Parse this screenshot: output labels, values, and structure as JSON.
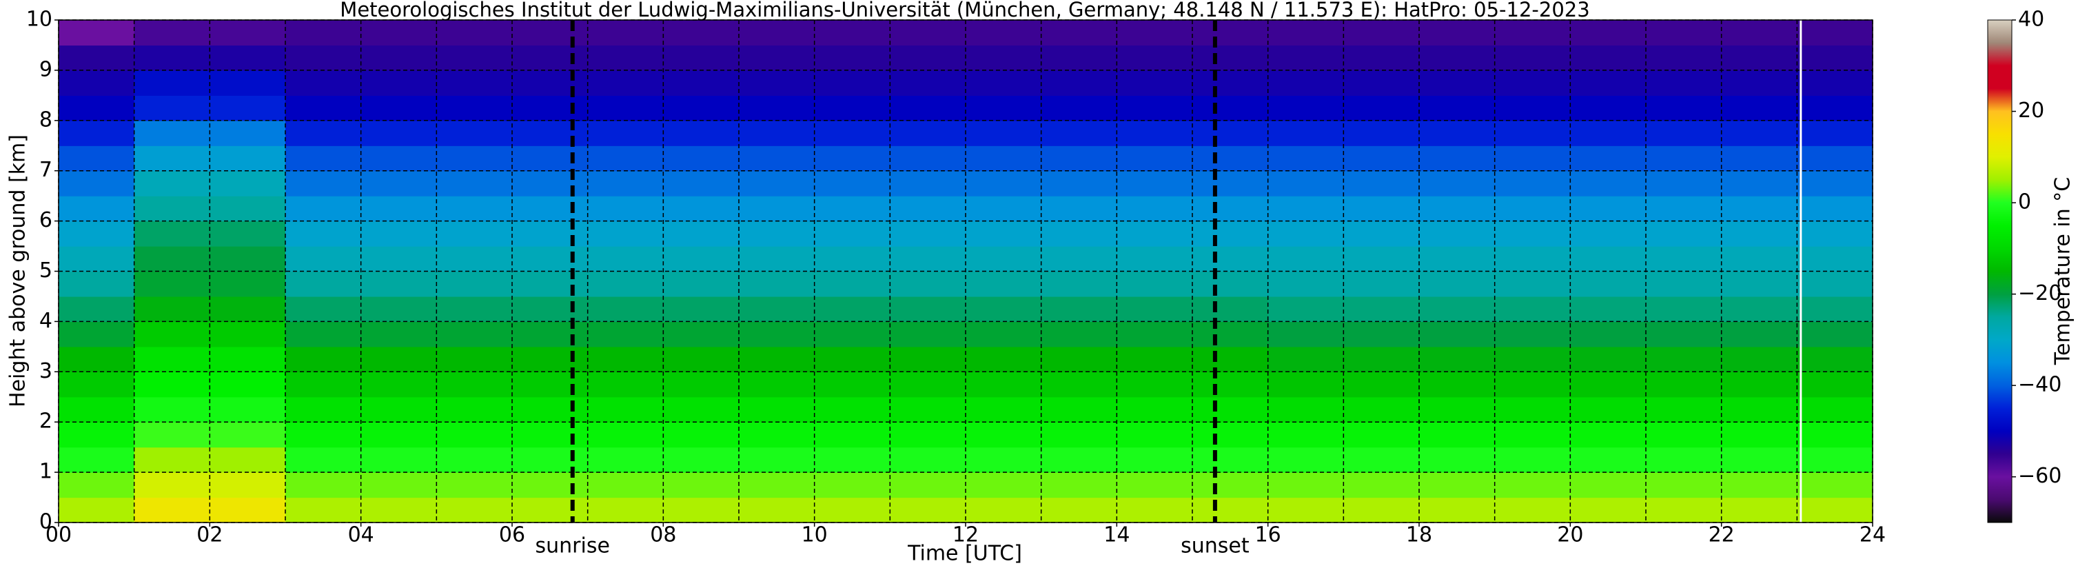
{
  "chart_data": {
    "type": "heatmap",
    "title": "Meteorologisches Institut der Ludwig-Maximilians-Universität (München, Germany; 48.148 N / 11.573 E):    HatPro: 05-12-2023",
    "xlabel": "Time [UTC]",
    "ylabel": "Height above ground [km]",
    "colorbar_label": "Temperature in °C",
    "xlim": [
      0,
      24
    ],
    "ylim": [
      0,
      10
    ],
    "zlim": [
      -70,
      40
    ],
    "xticks": [
      {
        "value": 0,
        "label": "00"
      },
      {
        "value": 2,
        "label": "02"
      },
      {
        "value": 4,
        "label": "04"
      },
      {
        "value": 6,
        "label": "06"
      },
      {
        "value": 8,
        "label": "08"
      },
      {
        "value": 10,
        "label": "10"
      },
      {
        "value": 12,
        "label": "12"
      },
      {
        "value": 14,
        "label": "14"
      },
      {
        "value": 16,
        "label": "16"
      },
      {
        "value": 18,
        "label": "18"
      },
      {
        "value": 20,
        "label": "20"
      },
      {
        "value": 22,
        "label": "22"
      },
      {
        "value": 24,
        "label": "24"
      }
    ],
    "x_minor_ticks": [
      1,
      3,
      5,
      7,
      9,
      11,
      13,
      15,
      17,
      19,
      21,
      23
    ],
    "yticks": [
      0,
      1,
      2,
      3,
      4,
      5,
      6,
      7,
      8,
      9,
      10
    ],
    "zticks": [
      {
        "value": 40,
        "label": "40"
      },
      {
        "value": 20,
        "label": "20"
      },
      {
        "value": 0,
        "label": "0"
      },
      {
        "value": -20,
        "label": "−20"
      },
      {
        "value": -40,
        "label": "−40"
      },
      {
        "value": -60,
        "label": "−60"
      }
    ],
    "grid": true,
    "colormap": [
      "#0a0a0a",
      "#4a0a70",
      "#6a10a0",
      "#300090",
      "#0000c0",
      "#0020d8",
      "#0060e0",
      "#0090e0",
      "#00a8c8",
      "#00a8a0",
      "#00a040",
      "#00b800",
      "#00d800",
      "#00f000",
      "#20ff20",
      "#a0f000",
      "#e0f000",
      "#f8e000",
      "#ffc020",
      "#d00020",
      "#d00020",
      "#a08878",
      "#d8d0c0"
    ],
    "x_edges": [
      0,
      1,
      2,
      3,
      4,
      5,
      6,
      7,
      8,
      9,
      10,
      11,
      12,
      13,
      14,
      15,
      16,
      17,
      18,
      19,
      20,
      21,
      22,
      23,
      24
    ],
    "y_edges": [
      0,
      0.5,
      1,
      1.5,
      2,
      2.5,
      3,
      3.5,
      4,
      4.5,
      5,
      5.5,
      6,
      6.5,
      7,
      7.5,
      8,
      8.5,
      9,
      9.5,
      10
    ],
    "z": [
      [
        6,
        13,
        13,
        6,
        6,
        6,
        6,
        6,
        6,
        6,
        6,
        6,
        6,
        6,
        6,
        6,
        6,
        6,
        6,
        6,
        6,
        6,
        6,
        6
      ],
      [
        3,
        9,
        9,
        3,
        3,
        3,
        3,
        3,
        3,
        3,
        3,
        3,
        3,
        3,
        3,
        3,
        3,
        3,
        3,
        3,
        3,
        3,
        3,
        3
      ],
      [
        -1,
        5,
        5,
        -1,
        -1,
        -1,
        -1,
        -1,
        -1,
        -1,
        -1,
        -1,
        -1,
        -1,
        -1,
        -1,
        -1,
        -1,
        -1,
        -1,
        -1,
        -1,
        -1,
        -1
      ],
      [
        -4,
        1,
        1,
        -4,
        -4,
        -4,
        -4,
        -4,
        -4,
        -4,
        -4,
        -4,
        -4,
        -4,
        -4,
        -4,
        -4,
        -4,
        -4,
        -4,
        -4,
        -4,
        -4,
        -4
      ],
      [
        -8,
        -2,
        -2,
        -8,
        -8,
        -8,
        -8,
        -8,
        -8,
        -8,
        -8,
        -8,
        -8,
        -8,
        -8,
        -8,
        -9,
        -9,
        -9,
        -9,
        -9,
        -9,
        -9,
        -9
      ],
      [
        -12,
        -5,
        -5,
        -12,
        -12,
        -12,
        -12,
        -12,
        -12,
        -12,
        -12,
        -12,
        -12,
        -12,
        -12,
        -12,
        -13,
        -13,
        -13,
        -13,
        -13,
        -13,
        -13,
        -13
      ],
      [
        -15,
        -8,
        -8,
        -15,
        -15,
        -15,
        -15,
        -15,
        -15,
        -15,
        -15,
        -15,
        -15,
        -15,
        -15,
        -15,
        -16,
        -16,
        -16,
        -16,
        -16,
        -16,
        -16,
        -16
      ],
      [
        -19,
        -12,
        -12,
        -19,
        -19,
        -19,
        -19,
        -19,
        -19,
        -19,
        -19,
        -19,
        -19,
        -19,
        -19,
        -19,
        -20,
        -20,
        -20,
        -20,
        -20,
        -20,
        -20,
        -20
      ],
      [
        -22,
        -16,
        -16,
        -22,
        -22,
        -22,
        -22,
        -22,
        -22,
        -22,
        -22,
        -22,
        -22,
        -22,
        -22,
        -22,
        -23,
        -23,
        -23,
        -23,
        -23,
        -23,
        -23,
        -23
      ],
      [
        -25,
        -19,
        -19,
        -25,
        -25,
        -25,
        -25,
        -25,
        -25,
        -25,
        -25,
        -25,
        -25,
        -25,
        -25,
        -25,
        -26,
        -26,
        -26,
        -26,
        -26,
        -26,
        -26,
        -26
      ],
      [
        -28,
        -20,
        -20,
        -28,
        -28,
        -28,
        -28,
        -28,
        -28,
        -28,
        -28,
        -28,
        -28,
        -28,
        -28,
        -28,
        -28,
        -28,
        -28,
        -28,
        -28,
        -28,
        -28,
        -28
      ],
      [
        -31,
        -22,
        -22,
        -31,
        -31,
        -31,
        -31,
        -31,
        -31,
        -31,
        -31,
        -31,
        -31,
        -31,
        -31,
        -31,
        -31,
        -31,
        -31,
        -31,
        -31,
        -31,
        -31,
        -31
      ],
      [
        -34,
        -25,
        -25,
        -34,
        -34,
        -34,
        -34,
        -34,
        -34,
        -34,
        -34,
        -34,
        -34,
        -34,
        -34,
        -34,
        -34,
        -34,
        -34,
        -34,
        -34,
        -34,
        -34,
        -34
      ],
      [
        -38,
        -28,
        -28,
        -38,
        -38,
        -38,
        -38,
        -38,
        -38,
        -38,
        -38,
        -38,
        -38,
        -38,
        -38,
        -38,
        -38,
        -38,
        -38,
        -38,
        -38,
        -38,
        -38,
        -38
      ],
      [
        -41,
        -32,
        -32,
        -41,
        -41,
        -41,
        -41,
        -41,
        -41,
        -41,
        -41,
        -41,
        -41,
        -41,
        -41,
        -41,
        -41,
        -41,
        -41,
        -41,
        -41,
        -41,
        -41,
        -41
      ],
      [
        -45,
        -37,
        -37,
        -45,
        -45,
        -45,
        -45,
        -45,
        -45,
        -45,
        -45,
        -45,
        -45,
        -45,
        -45,
        -45,
        -45,
        -45,
        -45,
        -45,
        -45,
        -45,
        -45,
        -45
      ],
      [
        -50,
        -45,
        -45,
        -50,
        -50,
        -50,
        -50,
        -50,
        -50,
        -50,
        -50,
        -50,
        -50,
        -50,
        -50,
        -50,
        -50,
        -50,
        -50,
        -50,
        -50,
        -50,
        -50,
        -50
      ],
      [
        -52,
        -48,
        -48,
        -52,
        -52,
        -52,
        -52,
        -52,
        -52,
        -52,
        -52,
        -52,
        -52,
        -52,
        -52,
        -52,
        -52,
        -52,
        -52,
        -52,
        -52,
        -52,
        -52,
        -52
      ],
      [
        -54,
        -53,
        -53,
        -54,
        -54,
        -54,
        -54,
        -54,
        -54,
        -54,
        -54,
        -54,
        -54,
        -54,
        -54,
        -54,
        -54,
        -54,
        -54,
        -54,
        -54,
        -54,
        -54,
        -54
      ],
      [
        -60,
        -57,
        -57,
        -56,
        -56,
        -56,
        -56,
        -56,
        -56,
        -56,
        -56,
        -56,
        -56,
        -56,
        -56,
        -56,
        -56,
        -56,
        -56,
        -56,
        -56,
        -56,
        -56,
        -56
      ]
    ],
    "annotations": [
      {
        "x": 6.8,
        "label": "sunrise"
      },
      {
        "x": 15.3,
        "label": "sunset"
      }
    ],
    "gap_lines": [
      23.05
    ]
  }
}
